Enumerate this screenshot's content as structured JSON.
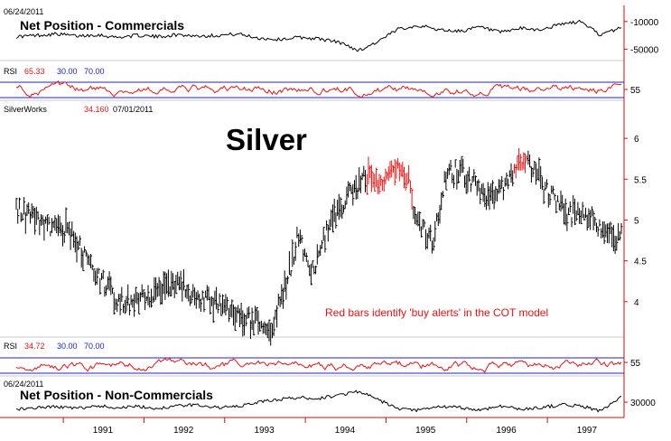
{
  "colors": {
    "price": "#000000",
    "alert": "#ee1111",
    "rsi_line": "#ee1111",
    "rsi_band": "#2222cc",
    "axis": "#cc1111",
    "rsi_value": "#ee1111",
    "rsi_levels": "#2222cc"
  },
  "chart_data": [
    {
      "type": "line",
      "panel": "commercials",
      "date_text": "06/24/2011",
      "title": "Net Position - Commercials",
      "y_ticks": [
        "-10000",
        "-50000"
      ],
      "x": [
        "1990-06",
        "1990-09",
        "1990-12",
        "1991-03",
        "1991-06",
        "1991-09",
        "1991-12",
        "1992-03",
        "1992-06",
        "1992-09",
        "1992-12",
        "1993-03",
        "1993-06",
        "1993-09",
        "1993-12",
        "1994-03",
        "1994-06",
        "1994-09",
        "1994-12",
        "1995-03",
        "1995-06",
        "1995-09",
        "1995-12",
        "1996-03",
        "1996-06",
        "1996-09",
        "1996-12",
        "1997-03",
        "1997-06",
        "1997-09",
        "1997-12"
      ],
      "values": [
        -32000,
        -30000,
        -28000,
        -31000,
        -29000,
        -33000,
        -30000,
        -32000,
        -29000,
        -31000,
        -30000,
        -28000,
        -34000,
        -36000,
        -33000,
        -35000,
        -40000,
        -52000,
        -38000,
        -20000,
        -16000,
        -22000,
        -24000,
        -18000,
        -26000,
        -20000,
        -22000,
        -14000,
        -10000,
        -30000,
        -18000
      ]
    },
    {
      "type": "line",
      "panel": "rsi-upper",
      "title": "RSI",
      "current": "65.33",
      "levels_text": [
        "30.00",
        "70.00"
      ],
      "y_ticks": [
        "55"
      ],
      "levels": [
        30,
        70
      ]
    },
    {
      "type": "bar",
      "panel": "price",
      "symbol": "SilverWorks",
      "price_text": "34.160",
      "date_text": "07/01/2011",
      "title": "Silver",
      "annotation": "Red bars identify 'buy alerts' in the COT model",
      "y_ticks": [
        "6",
        "5.5",
        "5",
        "4.5",
        "4"
      ],
      "ylim": [
        3.6,
        6.3
      ],
      "x": [
        "1990-06",
        "1990-08",
        "1990-10",
        "1990-12",
        "1991-02",
        "1991-04",
        "1991-06",
        "1991-08",
        "1991-10",
        "1991-12",
        "1992-02",
        "1992-04",
        "1992-06",
        "1992-08",
        "1992-10",
        "1992-12",
        "1993-02",
        "1993-04",
        "1993-06",
        "1993-08",
        "1993-10",
        "1993-12",
        "1994-02",
        "1994-04",
        "1994-06",
        "1994-08",
        "1994-10",
        "1994-12",
        "1995-02",
        "1995-04",
        "1995-06",
        "1995-08",
        "1995-10",
        "1995-12",
        "1996-02",
        "1996-04",
        "1996-06",
        "1996-08",
        "1996-10",
        "1996-12",
        "1997-02",
        "1997-04",
        "1997-06",
        "1997-08",
        "1997-10"
      ],
      "values": [
        5.15,
        5.05,
        4.92,
        4.95,
        4.85,
        4.55,
        4.35,
        4.15,
        3.95,
        4.1,
        4.05,
        4.15,
        4.25,
        4.1,
        4.05,
        3.95,
        3.85,
        3.8,
        3.75,
        3.7,
        4.2,
        4.8,
        4.35,
        4.8,
        5.15,
        5.35,
        5.55,
        5.5,
        5.6,
        5.55,
        4.9,
        4.75,
        5.55,
        5.6,
        5.45,
        5.3,
        5.35,
        5.6,
        5.75,
        5.45,
        5.25,
        5.05,
        5.15,
        4.95,
        4.8
      ],
      "alert_ranges": [
        [
          "1994-10",
          "1995-04"
        ],
        [
          "1996-08",
          "1996-09"
        ]
      ],
      "x_ticks": [
        "1991",
        "1992",
        "1993",
        "1994",
        "1995",
        "1996",
        "1997"
      ]
    },
    {
      "type": "line",
      "panel": "rsi-lower",
      "title": "RSI",
      "current": "34.72",
      "levels_text": [
        "30.00",
        "70.00"
      ],
      "y_ticks": [
        "55"
      ],
      "levels": [
        30,
        70
      ]
    },
    {
      "type": "line",
      "panel": "non-commercials",
      "date_text": "06/24/2011",
      "title": "Net Position - Non-Commercials",
      "y_ticks": [
        "30000"
      ],
      "x": [
        "1990-06",
        "1990-09",
        "1990-12",
        "1991-03",
        "1991-06",
        "1991-09",
        "1991-12",
        "1992-03",
        "1992-06",
        "1992-09",
        "1992-12",
        "1993-03",
        "1993-06",
        "1993-09",
        "1993-12",
        "1994-03",
        "1994-06",
        "1994-09",
        "1994-12",
        "1995-03",
        "1995-06",
        "1995-09",
        "1995-12",
        "1996-03",
        "1996-06",
        "1996-09",
        "1996-12",
        "1997-03",
        "1997-06",
        "1997-09",
        "1997-12"
      ],
      "values": [
        22000,
        24000,
        25000,
        23000,
        26000,
        24000,
        25000,
        23000,
        26000,
        27000,
        24000,
        25000,
        30000,
        33000,
        35000,
        34000,
        38000,
        42000,
        32000,
        22000,
        21000,
        25000,
        24000,
        21000,
        26000,
        22000,
        24000,
        27000,
        26000,
        20000,
        36000
      ]
    }
  ]
}
